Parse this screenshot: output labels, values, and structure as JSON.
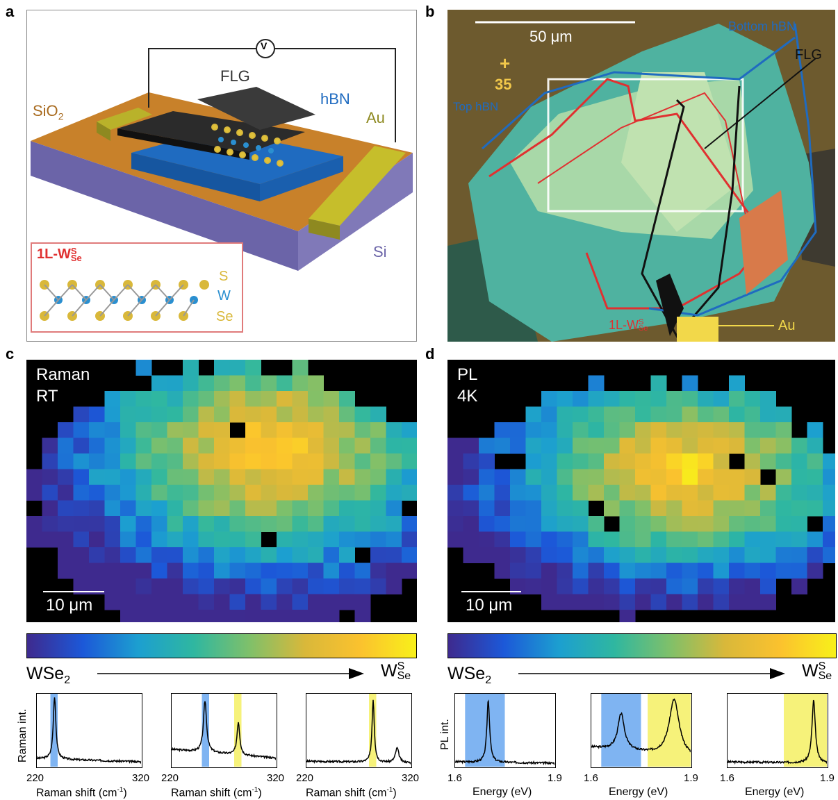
{
  "panels": {
    "a": {
      "letter": "a",
      "labels": {
        "flg": "FLG",
        "hbn": "hBN",
        "sio2": "SiO",
        "sio2_sub": "2",
        "au": "Au",
        "si": "Si",
        "voltmeter": "V"
      },
      "inset": {
        "title_main": "1L-W",
        "title_sup": "S",
        "title_sub": "Se",
        "s": "S",
        "w": "W",
        "se": "Se"
      }
    },
    "b": {
      "letter": "b",
      "labels": {
        "scale": "50 μm",
        "bottom_hbn": "Bottom hBN",
        "top_hbn": "Top hBN",
        "flg": "FLG",
        "wss_main": "1L-W",
        "wss_sup": "S",
        "wss_sub": "Se",
        "au": "Au",
        "marker": "35"
      }
    },
    "c": {
      "letter": "c",
      "line1": "Raman",
      "line2": "RT",
      "scale": "10 μm"
    },
    "d": {
      "letter": "d",
      "line1": "PL",
      "line2": "4K",
      "scale": "10 μm"
    }
  },
  "colorbar": {
    "left_main": "WSe",
    "left_sub": "2",
    "right_main": "W",
    "right_sup": "S",
    "right_sub": "Se",
    "colors": [
      "#3e2a8e",
      "#1c58d8",
      "#1c9fd0",
      "#2fb7a0",
      "#7fc06a",
      "#d9b83a",
      "#fbc22e",
      "#f8f01a"
    ]
  },
  "raman_spectra": {
    "ylabel": "Raman int.",
    "xlabel_main": "Raman shift (cm",
    "xlabel_sup": "-1",
    "xlabel_end": ")",
    "xmin": "220",
    "xmax": "320",
    "plots": [
      {
        "blue_band": [
          233,
          240
        ],
        "yellow_band": null,
        "peaks": [
          {
            "x": 237,
            "h": 0.95,
            "w": 1.5
          }
        ],
        "baseline": 0.08
      },
      {
        "blue_band": [
          249,
          256
        ],
        "yellow_band": [
          280,
          287
        ],
        "peaks": [
          {
            "x": 252,
            "h": 0.78,
            "w": 1.8
          },
          {
            "x": 284,
            "h": 0.5,
            "w": 1.6
          }
        ],
        "baseline": 0.22
      },
      {
        "blue_band": null,
        "yellow_band": [
          280,
          287
        ],
        "peaks": [
          {
            "x": 284,
            "h": 0.95,
            "w": 1.3
          },
          {
            "x": 307,
            "h": 0.22,
            "w": 2.0
          }
        ],
        "baseline": 0.04
      }
    ]
  },
  "pl_spectra": {
    "ylabel": "PL int.",
    "xlabel": "Energy (eV)",
    "xmin": "1.6",
    "xmax": "1.9",
    "plots": [
      {
        "blue_band": [
          1.63,
          1.75
        ],
        "yellow_band": null,
        "peaks": [
          {
            "x": 1.7,
            "h": 0.95,
            "w": 0.005
          }
        ],
        "baseline": 0.03
      },
      {
        "blue_band": [
          1.63,
          1.75
        ],
        "yellow_band": [
          1.77,
          1.9
        ],
        "peaks": [
          {
            "x": 1.69,
            "h": 0.55,
            "w": 0.012
          },
          {
            "x": 1.85,
            "h": 0.85,
            "w": 0.018
          }
        ],
        "baseline": 0.25
      },
      {
        "blue_band": null,
        "yellow_band": [
          1.77,
          1.9
        ],
        "peaks": [
          {
            "x": 1.86,
            "h": 0.95,
            "w": 0.006
          }
        ],
        "baseline": 0.03
      }
    ]
  }
}
